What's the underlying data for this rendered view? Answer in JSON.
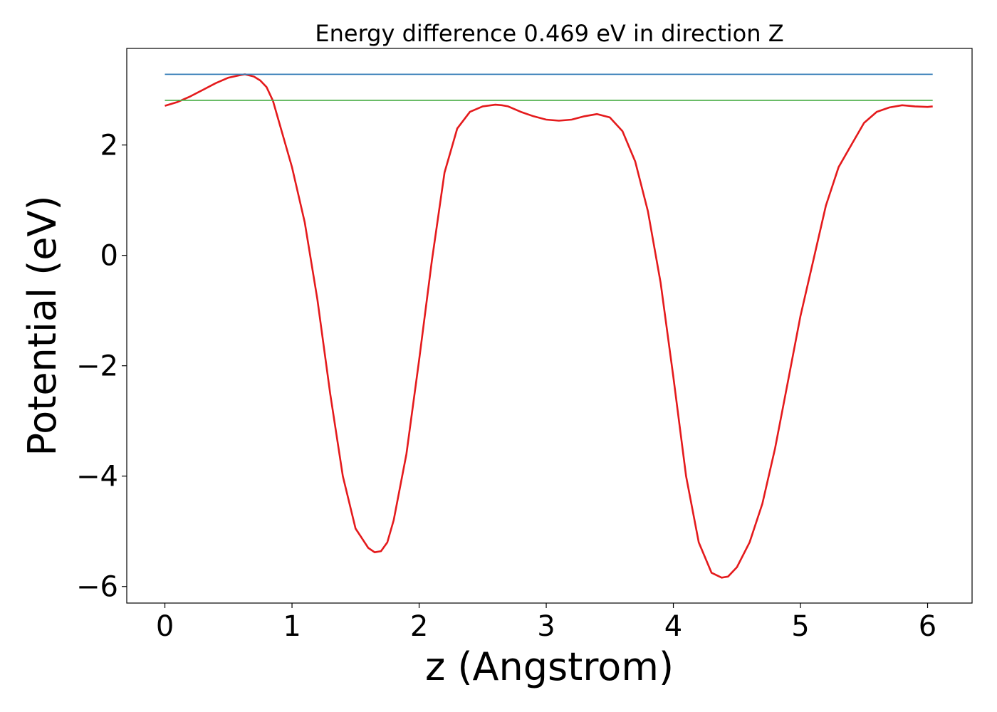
{
  "chart_data": {
    "type": "line",
    "title": "Energy difference 0.469 eV in direction Z",
    "xlabel": "z (Angstrom)",
    "ylabel": "Potential (eV)",
    "xlim": [
      -0.3,
      6.35
    ],
    "ylim": [
      -6.3,
      3.75
    ],
    "x_ticks": [
      0,
      1,
      2,
      3,
      4,
      5,
      6
    ],
    "x_tick_labels": [
      "0",
      "1",
      "2",
      "3",
      "4",
      "5",
      "6"
    ],
    "y_ticks": [
      2,
      0,
      -2,
      -4,
      -6
    ],
    "y_tick_labels": [
      "2",
      "0",
      "−2",
      "−4",
      "−6"
    ],
    "grid": false,
    "series": [
      {
        "color": "#e41a1c",
        "x": [
          0.0,
          0.1,
          0.2,
          0.3,
          0.4,
          0.5,
          0.6,
          0.63,
          0.7,
          0.75,
          0.8,
          0.85,
          0.9,
          1.0,
          1.1,
          1.2,
          1.3,
          1.4,
          1.5,
          1.6,
          1.65,
          1.7,
          1.75,
          1.8,
          1.9,
          2.0,
          2.1,
          2.2,
          2.3,
          2.4,
          2.5,
          2.6,
          2.65,
          2.7,
          2.8,
          2.9,
          3.0,
          3.1,
          3.2,
          3.3,
          3.4,
          3.5,
          3.6,
          3.7,
          3.8,
          3.9,
          4.0,
          4.1,
          4.2,
          4.3,
          4.38,
          4.43,
          4.5,
          4.6,
          4.7,
          4.8,
          4.9,
          5.0,
          5.1,
          5.2,
          5.3,
          5.4,
          5.5,
          5.6,
          5.7,
          5.8,
          5.9,
          6.0,
          6.04
        ],
        "y": [
          2.71,
          2.78,
          2.88,
          3.0,
          3.12,
          3.22,
          3.27,
          3.28,
          3.24,
          3.17,
          3.05,
          2.8,
          2.4,
          1.6,
          0.6,
          -0.8,
          -2.5,
          -4.0,
          -4.95,
          -5.3,
          -5.38,
          -5.36,
          -5.2,
          -4.8,
          -3.6,
          -1.9,
          -0.1,
          1.5,
          2.3,
          2.6,
          2.7,
          2.73,
          2.72,
          2.7,
          2.6,
          2.52,
          2.46,
          2.44,
          2.46,
          2.52,
          2.56,
          2.5,
          2.25,
          1.7,
          0.8,
          -0.5,
          -2.2,
          -4.0,
          -5.2,
          -5.75,
          -5.84,
          -5.82,
          -5.65,
          -5.2,
          -4.5,
          -3.5,
          -2.3,
          -1.1,
          -0.1,
          0.9,
          1.6,
          2.0,
          2.4,
          2.6,
          2.68,
          2.72,
          2.7,
          2.69,
          2.7
        ]
      },
      {
        "color": "#377eb8",
        "x": [
          0.0,
          6.04
        ],
        "y": [
          3.28,
          3.28
        ]
      },
      {
        "color": "#4daf4a",
        "x": [
          0.0,
          6.04
        ],
        "y": [
          2.81,
          2.81
        ]
      }
    ]
  }
}
